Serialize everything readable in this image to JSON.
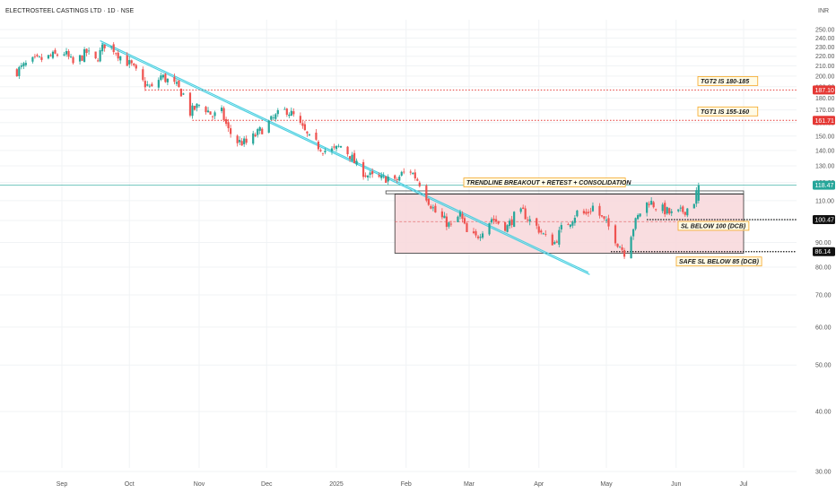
{
  "chart_data": {
    "type": "candlestick",
    "title": "ELECTROSTEEL CASTINGS LTD · 1D · NSE",
    "currency": "INR",
    "y_scale": "log",
    "ylim": [
      30,
      250
    ],
    "y_ticks": [
      30,
      40,
      50,
      60,
      70,
      80,
      90,
      100,
      110,
      120,
      130,
      140,
      150,
      160,
      170,
      180,
      190,
      200,
      210,
      220,
      230,
      240,
      250
    ],
    "x_ticks": [
      {
        "label": "Sep",
        "date": "2024-09-01"
      },
      {
        "label": "Oct",
        "date": "2024-10-01"
      },
      {
        "label": "Nov",
        "date": "2024-11-01"
      },
      {
        "label": "Dec",
        "date": "2024-12-01"
      },
      {
        "label": "2025",
        "date": "2025-01-01"
      },
      {
        "label": "Feb",
        "date": "2025-02-01"
      },
      {
        "label": "Mar",
        "date": "2025-03-01"
      },
      {
        "label": "Apr",
        "date": "2025-04-01"
      },
      {
        "label": "May",
        "date": "2025-05-01"
      },
      {
        "label": "Jun",
        "date": "2025-06-01"
      },
      {
        "label": "Jul",
        "date": "2025-07-01"
      }
    ],
    "colors": {
      "up": "#26a69a",
      "down": "#ef5350",
      "trendline": "#4dd0e1",
      "level": "#e53935",
      "box_fill": "#f8d7da"
    },
    "price_keypoints": [
      {
        "date": "2024-08-12",
        "price": 205
      },
      {
        "date": "2024-08-18",
        "price": 214
      },
      {
        "date": "2024-08-25",
        "price": 218
      },
      {
        "date": "2024-09-02",
        "price": 224
      },
      {
        "date": "2024-09-06",
        "price": 212
      },
      {
        "date": "2024-09-12",
        "price": 224
      },
      {
        "date": "2024-09-16",
        "price": 215
      },
      {
        "date": "2024-09-20",
        "price": 233
      },
      {
        "date": "2024-09-24",
        "price": 228
      },
      {
        "date": "2024-09-27",
        "price": 220
      },
      {
        "date": "2024-10-02",
        "price": 210
      },
      {
        "date": "2024-10-07",
        "price": 194
      },
      {
        "date": "2024-10-11",
        "price": 188
      },
      {
        "date": "2024-10-15",
        "price": 200
      },
      {
        "date": "2024-10-18",
        "price": 196
      },
      {
        "date": "2024-10-22",
        "price": 190
      },
      {
        "date": "2024-10-25",
        "price": 183
      },
      {
        "date": "2024-10-28",
        "price": 168
      },
      {
        "date": "2024-11-01",
        "price": 174
      },
      {
        "date": "2024-11-04",
        "price": 171
      },
      {
        "date": "2024-11-07",
        "price": 165
      },
      {
        "date": "2024-11-11",
        "price": 168
      },
      {
        "date": "2024-11-14",
        "price": 154
      },
      {
        "date": "2024-11-18",
        "price": 146
      },
      {
        "date": "2024-11-22",
        "price": 145
      },
      {
        "date": "2024-11-27",
        "price": 152
      },
      {
        "date": "2024-12-02",
        "price": 160
      },
      {
        "date": "2024-12-06",
        "price": 166
      },
      {
        "date": "2024-12-10",
        "price": 170
      },
      {
        "date": "2024-12-13",
        "price": 165
      },
      {
        "date": "2024-12-17",
        "price": 155
      },
      {
        "date": "2024-12-20",
        "price": 148
      },
      {
        "date": "2024-12-24",
        "price": 143
      },
      {
        "date": "2024-12-27",
        "price": 140
      },
      {
        "date": "2024-12-31",
        "price": 140
      },
      {
        "date": "2025-01-03",
        "price": 143
      },
      {
        "date": "2025-01-07",
        "price": 137
      },
      {
        "date": "2025-01-10",
        "price": 130
      },
      {
        "date": "2025-01-14",
        "price": 125
      },
      {
        "date": "2025-01-17",
        "price": 123
      },
      {
        "date": "2025-01-21",
        "price": 122
      },
      {
        "date": "2025-01-24",
        "price": 123
      },
      {
        "date": "2025-01-27",
        "price": 120
      },
      {
        "date": "2025-01-30",
        "price": 125
      },
      {
        "date": "2025-02-03",
        "price": 127
      },
      {
        "date": "2025-02-07",
        "price": 120
      },
      {
        "date": "2025-02-11",
        "price": 110
      },
      {
        "date": "2025-02-14",
        "price": 104
      },
      {
        "date": "2025-02-18",
        "price": 100
      },
      {
        "date": "2025-02-21",
        "price": 97
      },
      {
        "date": "2025-02-25",
        "price": 103
      },
      {
        "date": "2025-02-28",
        "price": 94
      },
      {
        "date": "2025-03-04",
        "price": 92
      },
      {
        "date": "2025-03-07",
        "price": 96
      },
      {
        "date": "2025-03-11",
        "price": 101
      },
      {
        "date": "2025-03-14",
        "price": 99
      },
      {
        "date": "2025-03-18",
        "price": 97
      },
      {
        "date": "2025-03-21",
        "price": 102
      },
      {
        "date": "2025-03-25",
        "price": 104
      },
      {
        "date": "2025-03-28",
        "price": 100
      },
      {
        "date": "2025-04-01",
        "price": 96
      },
      {
        "date": "2025-04-04",
        "price": 92
      },
      {
        "date": "2025-04-08",
        "price": 90
      },
      {
        "date": "2025-04-11",
        "price": 96
      },
      {
        "date": "2025-04-15",
        "price": 100
      },
      {
        "date": "2025-04-18",
        "price": 104
      },
      {
        "date": "2025-04-22",
        "price": 103
      },
      {
        "date": "2025-04-25",
        "price": 107
      },
      {
        "date": "2025-04-29",
        "price": 101
      },
      {
        "date": "2025-05-02",
        "price": 97
      },
      {
        "date": "2025-05-06",
        "price": 90
      },
      {
        "date": "2025-05-09",
        "price": 86
      },
      {
        "date": "2025-05-13",
        "price": 97
      },
      {
        "date": "2025-05-16",
        "price": 104
      },
      {
        "date": "2025-05-20",
        "price": 110
      },
      {
        "date": "2025-05-23",
        "price": 107
      },
      {
        "date": "2025-05-27",
        "price": 105
      },
      {
        "date": "2025-05-30",
        "price": 103
      },
      {
        "date": "2025-06-03",
        "price": 104
      },
      {
        "date": "2025-06-06",
        "price": 106
      },
      {
        "date": "2025-06-09",
        "price": 110
      },
      {
        "date": "2025-06-11",
        "price": 118.47
      }
    ],
    "trendline": {
      "start": {
        "date": "2024-09-18",
        "price": 237
      },
      "end": {
        "date": "2025-04-23",
        "price": 78
      }
    },
    "levels": [
      {
        "name": "tgt2",
        "price": 187.1,
        "start_date": "2024-10-08",
        "style": "dotted-red"
      },
      {
        "name": "tgt1",
        "price": 161.71,
        "start_date": "2024-10-29",
        "style": "dotted-red"
      },
      {
        "name": "last",
        "price": 118.47,
        "start_date": "2024-08-01",
        "style": "solid-teal"
      },
      {
        "name": "sl",
        "price": 100.47,
        "start_date": "2025-05-19",
        "style": "dotted-black"
      },
      {
        "name": "safe_sl",
        "price": 86.14,
        "start_date": "2025-05-03",
        "style": "dotted-black"
      }
    ],
    "consolidation_box": {
      "start_date": "2025-01-27",
      "end_date": "2025-07-01",
      "top": 113.5,
      "bottom": 85.5,
      "mid": 99.5
    },
    "breakout_line": {
      "start_date": "2025-01-23",
      "end_date": "2025-07-01",
      "price": 114.5
    },
    "price_labels": {
      "tgt2": "187.10",
      "tgt1": "161.71",
      "last": "118.47",
      "sl": "100.47",
      "safe_sl": "86.14"
    },
    "annotations": {
      "tgt2": "TGT2 IS 180-185",
      "tgt1": "TGT1 IS 155-160",
      "breakout": "TRENDLINE BREAKOUT + RETEST + CONSOLIDATION",
      "sl": "SL BELOW 100 (DCB)",
      "safe_sl": "SAFE SL BELOW 85 (DCB)"
    }
  }
}
